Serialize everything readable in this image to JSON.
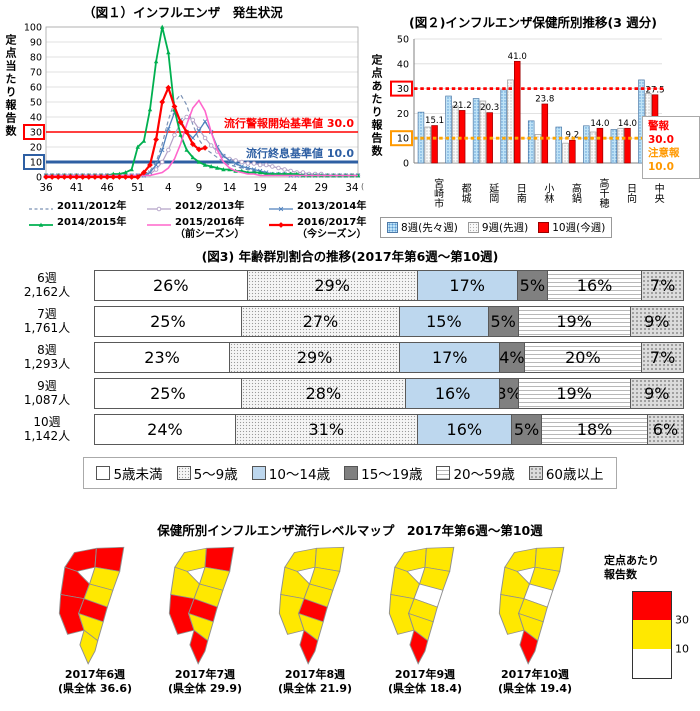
{
  "chart_data": [
    {
      "type": "line",
      "title": "（図１）インフルエンザ　発生状況",
      "ylabel": "定点当たり報告数",
      "ylim": [
        0,
        100
      ],
      "x_unit": "(週)",
      "x_tick_labels": [
        "36",
        "41",
        "46",
        "51",
        "4",
        "9",
        "14",
        "19",
        "24",
        "29",
        "34"
      ],
      "x_tick_idx": [
        0,
        5,
        10,
        15,
        20,
        25,
        30,
        35,
        40,
        45,
        50
      ],
      "weeks": [
        36,
        37,
        38,
        39,
        40,
        41,
        42,
        43,
        44,
        45,
        46,
        47,
        48,
        49,
        50,
        51,
        52,
        1,
        2,
        3,
        4,
        5,
        6,
        7,
        8,
        9,
        10,
        11,
        12,
        13,
        14,
        15,
        16,
        17,
        18,
        19,
        20,
        21,
        22,
        23,
        24,
        25,
        26,
        27,
        28,
        29,
        30,
        31,
        32,
        33,
        34,
        35
      ],
      "thresholds": {
        "warning": {
          "value": 30,
          "label": "流行警報開始基準値 30.0",
          "color": "#FF0000"
        },
        "end": {
          "value": 10,
          "label": "流行終息基準値 10.0",
          "color": "#2E5FA3"
        }
      },
      "series": [
        {
          "name": "2011/2012年",
          "sub": "",
          "color": "#7C92B5",
          "dash": true,
          "marker": "none",
          "width": 1.2,
          "values": [
            1,
            1,
            1,
            1,
            1,
            1,
            1,
            1,
            1,
            1,
            1,
            1,
            1,
            1,
            1,
            1,
            2,
            4,
            10,
            22,
            38,
            50,
            55,
            48,
            35,
            25,
            19,
            16,
            13,
            10,
            8,
            7,
            6,
            5,
            4,
            3,
            3,
            2,
            2,
            2,
            2,
            1,
            1,
            1,
            1,
            1,
            1,
            1,
            1,
            1,
            1,
            1
          ]
        },
        {
          "name": "2012/2013年",
          "sub": "",
          "color": "#B3A2C7",
          "dash": false,
          "marker": "circle",
          "width": 1.2,
          "values": [
            1,
            1,
            1,
            1,
            1,
            1,
            1,
            1,
            1,
            1,
            1,
            1,
            1,
            1,
            1,
            1,
            1,
            2,
            5,
            10,
            18,
            28,
            36,
            40,
            38,
            32,
            26,
            21,
            17,
            14,
            12,
            11,
            10,
            9,
            9,
            8,
            8,
            7,
            6,
            5,
            4,
            3,
            3,
            2,
            2,
            2,
            1,
            1,
            1,
            1,
            1,
            1
          ]
        },
        {
          "name": "2013/2014年",
          "sub": "",
          "color": "#4F81BD",
          "dash": false,
          "marker": "x",
          "width": 1.3,
          "values": [
            1,
            1,
            1,
            1,
            1,
            1,
            1,
            1,
            1,
            1,
            1,
            1,
            1,
            1,
            1,
            1,
            1,
            3,
            8,
            18,
            32,
            43,
            38,
            30,
            26,
            31,
            37,
            30,
            20,
            14,
            11,
            9,
            7,
            6,
            5,
            4,
            3,
            2,
            2,
            2,
            1,
            1,
            1,
            1,
            1,
            1,
            1,
            1,
            1,
            1,
            1,
            1
          ]
        },
        {
          "name": "2014/2015年",
          "sub": "",
          "color": "#00B050",
          "dash": false,
          "marker": "triangle",
          "width": 1.8,
          "values": [
            1,
            1,
            1,
            1,
            1,
            1,
            1,
            1,
            1,
            1,
            1,
            2,
            2,
            3,
            5,
            20,
            24,
            45,
            77,
            100,
            83,
            45,
            28,
            18,
            13,
            10,
            8,
            7,
            6,
            5,
            5,
            4,
            4,
            3,
            3,
            3,
            2,
            2,
            2,
            2,
            2,
            2,
            1,
            1,
            1,
            1,
            1,
            1,
            1,
            1,
            1,
            1
          ]
        },
        {
          "name": "2015/2016年",
          "sub": "（前シーズン）",
          "color": "#FF66CC",
          "dash": false,
          "marker": "none",
          "width": 1.6,
          "values": [
            1,
            1,
            1,
            1,
            1,
            1,
            1,
            1,
            1,
            1,
            1,
            1,
            1,
            1,
            1,
            1,
            1,
            1,
            2,
            3,
            6,
            12,
            22,
            35,
            46,
            51,
            44,
            30,
            18,
            10,
            6,
            4,
            3,
            2,
            2,
            1,
            1,
            1,
            1,
            1,
            1,
            1,
            1,
            1,
            1,
            1,
            1,
            1,
            1,
            1,
            1,
            1
          ]
        },
        {
          "name": "2016/2017年",
          "sub": "（今シーズン）",
          "color": "#FF0000",
          "dash": false,
          "marker": "diamond",
          "width": 2.2,
          "values": [
            0,
            0,
            0,
            0,
            0,
            0,
            0,
            0,
            0,
            0,
            0,
            0,
            0,
            0,
            0,
            0,
            3,
            8,
            25,
            50,
            59.5,
            47,
            36.6,
            29.9,
            21.9,
            18.4,
            19.4,
            null,
            null,
            null,
            null,
            null,
            null,
            null,
            null,
            null,
            null,
            null,
            null,
            null,
            null,
            null,
            null,
            null,
            null,
            null,
            null,
            null,
            null,
            null,
            null,
            null
          ]
        }
      ]
    },
    {
      "type": "bar",
      "title": "(図２)インフルエンザ保健所別推移(3 週分)",
      "ylabel": "定点あたり報告数",
      "ylim": [
        0,
        50
      ],
      "categories": [
        "宮崎市",
        "都城",
        "延岡",
        "日南",
        "小林",
        "高鍋",
        "高千穂",
        "日向",
        "中央"
      ],
      "series": [
        {
          "name": "8週(先々週)",
          "values": [
            20.5,
            27,
            26,
            29.5,
            17,
            14.5,
            15,
            13.5,
            33.5
          ]
        },
        {
          "name": "9週(先週)",
          "values": [
            14.5,
            23,
            25,
            33.5,
            11.5,
            8,
            12.5,
            14,
            28
          ]
        },
        {
          "name": "10週(今週)",
          "values": [
            15.1,
            21.2,
            20.3,
            41.0,
            23.8,
            9.2,
            14.0,
            14.0,
            27.5
          ]
        }
      ],
      "value_labels": [
        "15.1",
        "21.2",
        "20.3",
        "41.0",
        "23.8",
        "9.2",
        "14.0",
        "14.0",
        "27.5"
      ],
      "thresholds": {
        "warning": {
          "value": 30,
          "color": "#FF0000"
        },
        "caution": {
          "value": 10,
          "color": "#FFA500"
        }
      },
      "annotation_box": {
        "line1": "警報",
        "line2": "30.0",
        "line3": "注意報",
        "line4": "10.0"
      }
    },
    {
      "type": "stacked-bar",
      "title": "(図3) 年齢群別割合の推移(2017年第6週～第10週)",
      "rows": [
        {
          "week": "6週",
          "count": "2,162人",
          "values": [
            26,
            29,
            17,
            5,
            16,
            7
          ]
        },
        {
          "week": "7週",
          "count": "1,761人",
          "values": [
            25,
            27,
            15,
            5,
            19,
            9
          ]
        },
        {
          "week": "8週",
          "count": "1,293人",
          "values": [
            23,
            29,
            17,
            4,
            20,
            7
          ]
        },
        {
          "week": "9週",
          "count": "1,087人",
          "values": [
            25,
            28,
            16,
            3,
            19,
            9
          ]
        },
        {
          "week": "10週",
          "count": "1,142人",
          "values": [
            24,
            31,
            16,
            5,
            18,
            6
          ]
        }
      ],
      "legend": [
        "5歳未満",
        "5～9歳",
        "10～14歳",
        "15～19歳",
        "20～59歳",
        "60歳以上"
      ]
    },
    {
      "type": "map-series",
      "title": "保健所別インフルエンザ流行レベルマップ　2017年第6週～第10週",
      "items": [
        {
          "caption": "2017年6週",
          "total": "(県全体 36.6)",
          "colors": {
            "takachiho": "red",
            "nobeoka": "red",
            "hyuga": "yellow",
            "kobayashi": "red",
            "takanabe": "yellow",
            "chuo": "red",
            "miyakonojo": "red",
            "miyazaki": "yellow",
            "nichinan": "yellow"
          }
        },
        {
          "caption": "2017年7週",
          "total": "(県全体 29.9)",
          "colors": {
            "takachiho": "yellow",
            "nobeoka": "red",
            "hyuga": "yellow",
            "kobayashi": "yellow",
            "takanabe": "yellow",
            "chuo": "red",
            "miyakonojo": "red",
            "miyazaki": "yellow",
            "nichinan": "red"
          }
        },
        {
          "caption": "2017年8週",
          "total": "(県全体 21.9)",
          "colors": {
            "takachiho": "yellow",
            "nobeoka": "yellow",
            "hyuga": "yellow",
            "kobayashi": "yellow",
            "takanabe": "yellow",
            "chuo": "red",
            "miyakonojo": "yellow",
            "miyazaki": "yellow",
            "nichinan": "red"
          }
        },
        {
          "caption": "2017年9週",
          "total": "(県全体 18.4)",
          "colors": {
            "takachiho": "yellow",
            "nobeoka": "yellow",
            "hyuga": "yellow",
            "kobayashi": "yellow",
            "takanabe": "white",
            "chuo": "yellow",
            "miyakonojo": "yellow",
            "miyazaki": "yellow",
            "nichinan": "red"
          }
        },
        {
          "caption": "2017年10週",
          "total": "(県全体 19.4)",
          "colors": {
            "takachiho": "yellow",
            "nobeoka": "yellow",
            "hyuga": "yellow",
            "kobayashi": "yellow",
            "takanabe": "white",
            "chuo": "yellow",
            "miyakonojo": "yellow",
            "miyazaki": "yellow",
            "nichinan": "red"
          }
        }
      ],
      "legend": {
        "title_line1": "定点あたり",
        "title_line2": "報告数",
        "scale": [
          {
            "color": "red",
            "label": "30"
          },
          {
            "color": "yellow",
            "label": "10"
          },
          {
            "color": "white",
            "label": ""
          }
        ]
      }
    }
  ]
}
